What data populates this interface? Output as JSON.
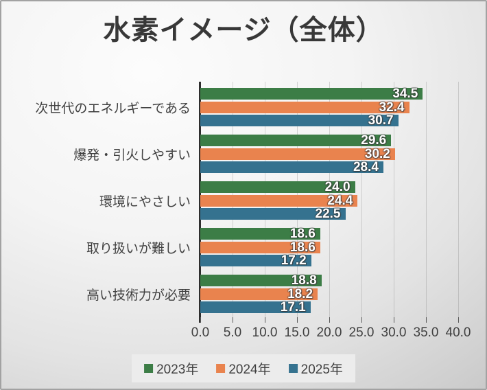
{
  "title": "水素イメージ（全体）",
  "colors": {
    "series_2023": "#3C7D46",
    "series_2024": "#E9834E",
    "series_2025": "#35728F",
    "axis_line": "#2e2e2e",
    "text": "#404040",
    "bar_value_text": "#ffffff",
    "legend_background": "#ececec"
  },
  "chart_data": {
    "type": "bar",
    "orientation": "horizontal",
    "title": "水素イメージ（全体）",
    "categories": [
      "次世代のエネルギーである",
      "爆発・引火しやすい",
      "環境にやさしい",
      "取り扱いが難しい",
      "高い技術力が必要"
    ],
    "series": [
      {
        "name": "2023年",
        "color": "#3C7D46",
        "values": [
          34.5,
          29.6,
          24.0,
          18.6,
          18.8
        ]
      },
      {
        "name": "2024年",
        "color": "#E9834E",
        "values": [
          32.4,
          30.2,
          24.4,
          18.6,
          18.2
        ]
      },
      {
        "name": "2025年",
        "color": "#35728F",
        "values": [
          30.7,
          28.4,
          22.5,
          17.2,
          17.1
        ]
      }
    ],
    "xlim": [
      0,
      40
    ],
    "x_ticks": [
      "0.0",
      "5.0",
      "10.0",
      "15.0",
      "20.0",
      "25.0",
      "30.0",
      "35.0",
      "40.0"
    ],
    "value_labels": true,
    "value_label_format": "0.1f",
    "grid": true,
    "legend_position": "bottom-center"
  }
}
